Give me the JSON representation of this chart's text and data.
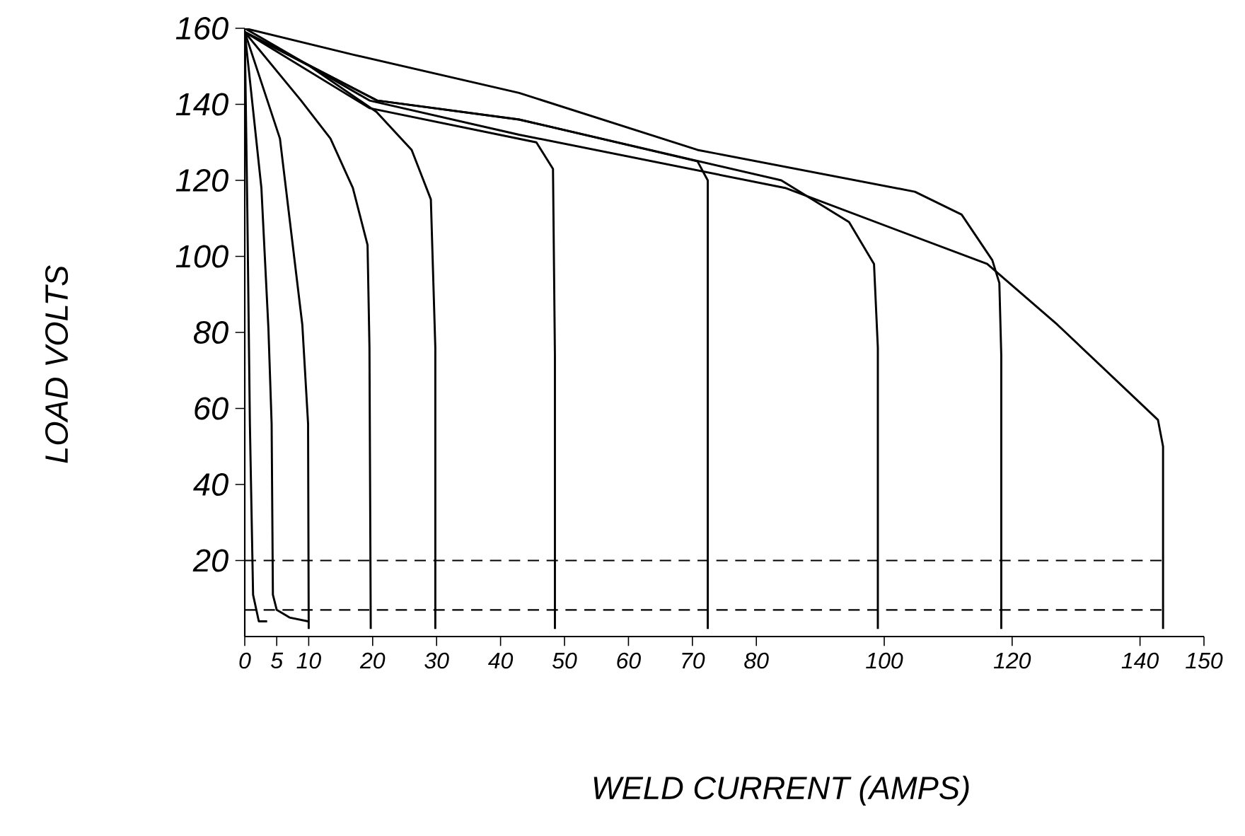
{
  "chart_data": {
    "type": "line",
    "xlabel": "WELD CURRENT (AMPS)",
    "ylabel": "LOAD VOLTS",
    "xlim": [
      0,
      150
    ],
    "ylim": [
      0,
      160
    ],
    "xticks": [
      0,
      5,
      10,
      20,
      30,
      40,
      50,
      60,
      70,
      80,
      100,
      120,
      140,
      150
    ],
    "yticks": [
      20,
      40,
      60,
      80,
      100,
      120,
      140,
      160
    ],
    "marker": "none",
    "line_style": "solid",
    "series": [
      {
        "color": "#000000",
        "x": [
          0,
          0.4,
          0.8,
          1.3,
          2.2,
          3.5
        ],
        "values": [
          159,
          112,
          56,
          11,
          4,
          4
        ]
      },
      {
        "color": "#000000",
        "x": [
          0,
          2.6,
          3.7,
          4.2,
          4.4,
          5.0,
          7.0,
          9.9
        ],
        "values": [
          159,
          118,
          81,
          56,
          11,
          7,
          5,
          4
        ]
      },
      {
        "color": "#000000",
        "x": [
          0,
          5.5,
          9.0,
          9.9,
          10.0
        ],
        "values": [
          159,
          131,
          82,
          56,
          2
        ]
      },
      {
        "color": "#000000",
        "x": [
          0,
          8.8,
          13.4,
          16.9,
          19.2,
          19.5,
          19.7
        ],
        "values": [
          159,
          141,
          131,
          118,
          103,
          76,
          2
        ]
      },
      {
        "color": "#000000",
        "x": [
          0,
          10.2,
          20.6,
          26.1,
          29.1,
          29.8,
          29.8
        ],
        "values": [
          159,
          150,
          138,
          128,
          115,
          76,
          2
        ]
      },
      {
        "color": "#000000",
        "x": [
          0,
          19.5,
          45.6,
          48.2,
          48.5,
          48.5
        ],
        "values": [
          159,
          139,
          130,
          123,
          74,
          2
        ]
      },
      {
        "color": "#000000",
        "x": [
          0,
          20.7,
          42.9,
          70.8,
          72.4,
          72.4
        ],
        "values": [
          159,
          141,
          136,
          125,
          120,
          2
        ]
      },
      {
        "color": "#000000",
        "x": [
          0,
          20.7,
          42.9,
          83.9,
          94.5,
          98.4,
          99,
          99
        ],
        "values": [
          159,
          141,
          136,
          120,
          109,
          98,
          76,
          2
        ]
      },
      {
        "color": "#000000",
        "x": [
          0,
          17.1,
          42.9,
          70.8,
          104.8,
          112.1,
          116.9,
          118,
          118.3,
          118.3
        ],
        "values": [
          160,
          153,
          143,
          128,
          117,
          111,
          99,
          93,
          74,
          2
        ]
      },
      {
        "color": "#000000",
        "x": [
          0,
          19.5,
          42.9,
          84.5,
          116.1,
          127.1,
          142.8,
          143.6,
          143.6
        ],
        "values": [
          160,
          141,
          132,
          118,
          98,
          82,
          57,
          50,
          2
        ]
      }
    ],
    "ref_lines": [
      {
        "axis": "y",
        "value": 20,
        "color": "#000000",
        "line_style": "dashed"
      },
      {
        "axis": "y",
        "value": 7,
        "color": "#000000",
        "line_style": "dashed"
      }
    ]
  }
}
